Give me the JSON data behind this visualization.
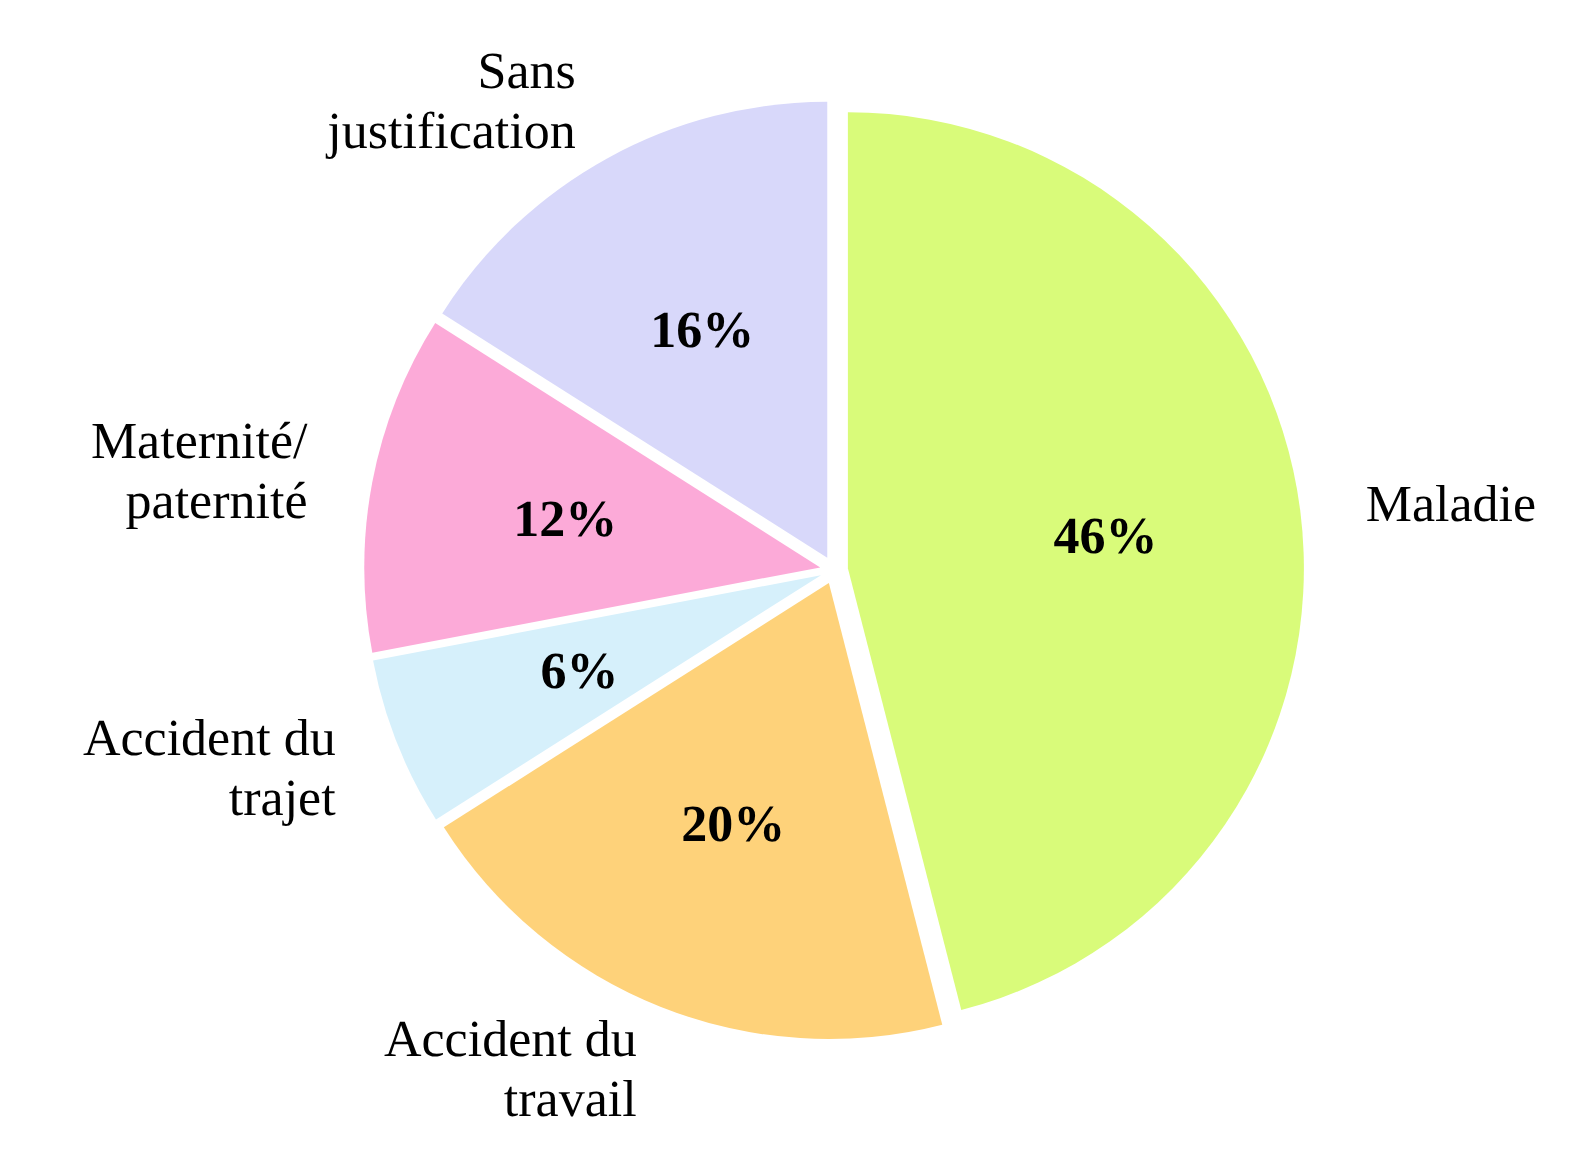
{
  "chart_data": {
    "type": "pie",
    "categories": [
      "Maladie",
      "Accident du travail",
      "Accident du trajet",
      "Maternité/paternité",
      "Sans justification"
    ],
    "values": [
      46,
      20,
      6,
      12,
      16
    ],
    "colors": [
      "#d9fb7a",
      "#fed27a",
      "#d6f0fb",
      "#fcaad8",
      "#d8d8fa"
    ],
    "value_labels": [
      "46%",
      "20%",
      "6%",
      "12%",
      "16%"
    ],
    "legend": false
  }
}
